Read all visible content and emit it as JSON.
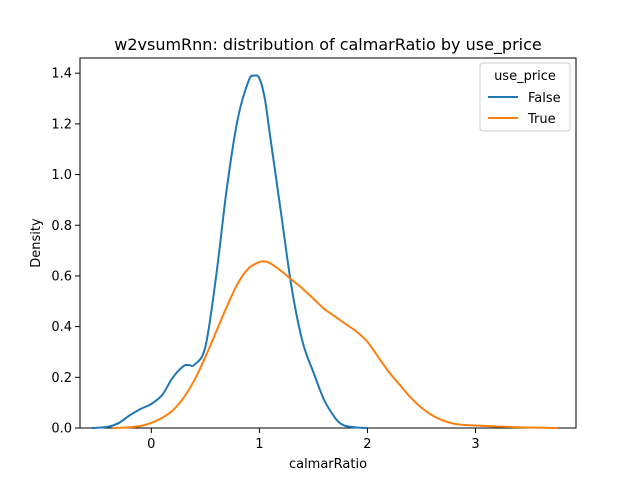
{
  "chart_data": {
    "type": "line",
    "title": "w2vsumRnn: distribution of calmarRatio by use_price",
    "xlabel": "calmarRatio",
    "ylabel": "Density",
    "xlim": [
      -0.66,
      3.93
    ],
    "ylim": [
      0,
      1.46
    ],
    "xticks": [
      0,
      1,
      2,
      3
    ],
    "yticks": [
      0.0,
      0.2,
      0.4,
      0.6,
      0.8,
      1.0,
      1.2,
      1.4
    ],
    "grid": false,
    "legend": {
      "title": "use_price",
      "position": "top-right"
    },
    "series": [
      {
        "name": "False",
        "color": "#1f77b4",
        "x": [
          -0.55,
          -0.4,
          -0.3,
          -0.2,
          -0.1,
          0.0,
          0.1,
          0.2,
          0.3,
          0.35,
          0.4,
          0.5,
          0.6,
          0.7,
          0.8,
          0.9,
          0.95,
          1.0,
          1.05,
          1.1,
          1.2,
          1.3,
          1.4,
          1.5,
          1.6,
          1.7,
          1.75,
          1.8,
          1.9,
          2.0
        ],
        "y": [
          0.0,
          0.005,
          0.02,
          0.05,
          0.075,
          0.095,
          0.13,
          0.2,
          0.245,
          0.248,
          0.25,
          0.32,
          0.6,
          0.95,
          1.22,
          1.37,
          1.39,
          1.38,
          1.3,
          1.15,
          0.85,
          0.55,
          0.34,
          0.22,
          0.11,
          0.04,
          0.018,
          0.008,
          0.002,
          0.0
        ]
      },
      {
        "name": "True",
        "color": "#ff7f0e",
        "x": [
          -0.35,
          -0.2,
          -0.1,
          0.0,
          0.1,
          0.2,
          0.3,
          0.4,
          0.5,
          0.6,
          0.7,
          0.8,
          0.9,
          1.0,
          1.05,
          1.1,
          1.2,
          1.3,
          1.4,
          1.5,
          1.6,
          1.7,
          1.8,
          1.9,
          2.0,
          2.1,
          2.2,
          2.3,
          2.4,
          2.5,
          2.6,
          2.7,
          2.8,
          2.9,
          3.0,
          3.2,
          3.4,
          3.6,
          3.75
        ],
        "y": [
          0.0,
          0.003,
          0.008,
          0.02,
          0.04,
          0.07,
          0.12,
          0.19,
          0.28,
          0.38,
          0.48,
          0.57,
          0.63,
          0.655,
          0.657,
          0.65,
          0.62,
          0.585,
          0.55,
          0.51,
          0.47,
          0.44,
          0.41,
          0.38,
          0.34,
          0.28,
          0.22,
          0.17,
          0.12,
          0.08,
          0.05,
          0.03,
          0.017,
          0.012,
          0.01,
          0.006,
          0.003,
          0.001,
          0.0
        ]
      }
    ]
  }
}
